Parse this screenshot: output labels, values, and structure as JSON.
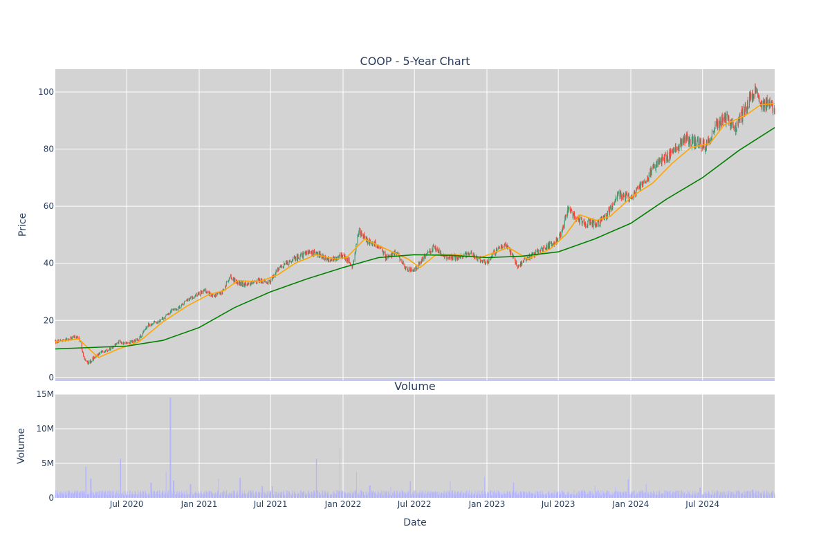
{
  "chart_data": [
    {
      "type": "candlestick",
      "title": "COOP - 5-Year Chart",
      "xlabel": "",
      "ylabel": "Price",
      "x_range": [
        "2020-01-02",
        "2024-12-31"
      ],
      "ylim": [
        -1,
        108
      ],
      "y_ticks": [
        0,
        20,
        40,
        60,
        80,
        100
      ],
      "x_ticks": [
        {
          "date": "2020-07-01",
          "label": "Jul 2020"
        },
        {
          "date": "2021-01-01",
          "label": "Jan 2021"
        },
        {
          "date": "2021-07-01",
          "label": "Jul 2021"
        },
        {
          "date": "2022-01-01",
          "label": "Jan 2022"
        },
        {
          "date": "2022-07-01",
          "label": "Jul 2022"
        },
        {
          "date": "2023-01-01",
          "label": "Jan 2023"
        },
        {
          "date": "2023-07-01",
          "label": "Jul 2023"
        },
        {
          "date": "2024-01-01",
          "label": "Jan 2024"
        },
        {
          "date": "2024-07-01",
          "label": "Jul 2024"
        }
      ],
      "grid": true,
      "up_color": "#3d9970",
      "down_color": "#ff4136",
      "close_path": [
        [
          "2020-01-02",
          12.5
        ],
        [
          "2020-02-01",
          13.2
        ],
        [
          "2020-02-20",
          14.3
        ],
        [
          "2020-03-05",
          13.0
        ],
        [
          "2020-03-15",
          6.5
        ],
        [
          "2020-03-25",
          5.0
        ],
        [
          "2020-04-05",
          6.5
        ],
        [
          "2020-04-20",
          8.5
        ],
        [
          "2020-05-15",
          9.5
        ],
        [
          "2020-06-10",
          12.5
        ],
        [
          "2020-07-01",
          12.0
        ],
        [
          "2020-08-01",
          13.5
        ],
        [
          "2020-08-25",
          18.5
        ],
        [
          "2020-09-20",
          19.5
        ],
        [
          "2020-10-20",
          23.0
        ],
        [
          "2020-11-10",
          24.5
        ],
        [
          "2020-12-01",
          27.0
        ],
        [
          "2021-01-15",
          30.5
        ],
        [
          "2021-02-05",
          28.5
        ],
        [
          "2021-03-01",
          30.0
        ],
        [
          "2021-03-20",
          35.5
        ],
        [
          "2021-04-10",
          33.0
        ],
        [
          "2021-05-01",
          32.5
        ],
        [
          "2021-06-01",
          34.0
        ],
        [
          "2021-07-01",
          33.5
        ],
        [
          "2021-07-20",
          38.0
        ],
        [
          "2021-08-15",
          40.5
        ],
        [
          "2021-09-15",
          42.5
        ],
        [
          "2021-10-05",
          44.0
        ],
        [
          "2021-11-01",
          43.0
        ],
        [
          "2021-12-01",
          41.0
        ],
        [
          "2022-01-01",
          43.0
        ],
        [
          "2022-01-25",
          39.0
        ],
        [
          "2022-02-10",
          51.5
        ],
        [
          "2022-03-01",
          48.0
        ],
        [
          "2022-04-01",
          46.0
        ],
        [
          "2022-04-20",
          42.0
        ],
        [
          "2022-05-15",
          44.0
        ],
        [
          "2022-06-10",
          38.0
        ],
        [
          "2022-07-01",
          37.5
        ],
        [
          "2022-07-25",
          42.0
        ],
        [
          "2022-08-20",
          46.0
        ],
        [
          "2022-09-15",
          42.0
        ],
        [
          "2022-10-15",
          42.0
        ],
        [
          "2022-11-20",
          43.5
        ],
        [
          "2023-01-01",
          40.0
        ],
        [
          "2023-01-20",
          44.0
        ],
        [
          "2023-02-20",
          46.5
        ],
        [
          "2023-03-20",
          39.0
        ],
        [
          "2023-04-15",
          42.0
        ],
        [
          "2023-05-20",
          45.0
        ],
        [
          "2023-06-20",
          47.0
        ],
        [
          "2023-07-10",
          51.0
        ],
        [
          "2023-07-25",
          59.0
        ],
        [
          "2023-08-15",
          56.0
        ],
        [
          "2023-09-10",
          54.0
        ],
        [
          "2023-10-10",
          54.0
        ],
        [
          "2023-11-01",
          57.0
        ],
        [
          "2023-12-01",
          64.0
        ],
        [
          "2024-01-01",
          63.0
        ],
        [
          "2024-02-01",
          68.0
        ],
        [
          "2024-02-20",
          72.0
        ],
        [
          "2024-03-20",
          76.0
        ],
        [
          "2024-04-20",
          79.0
        ],
        [
          "2024-05-15",
          84.0
        ],
        [
          "2024-06-15",
          82.0
        ],
        [
          "2024-07-10",
          81.0
        ],
        [
          "2024-08-01",
          88.0
        ],
        [
          "2024-09-01",
          91.0
        ],
        [
          "2024-09-20",
          87.0
        ],
        [
          "2024-10-20",
          95.0
        ],
        [
          "2024-11-10",
          100.0
        ],
        [
          "2024-12-01",
          96.0
        ],
        [
          "2024-12-31",
          95.0
        ]
      ],
      "ma_short": {
        "color": "#ffa500",
        "points": [
          [
            "2020-01-02",
            12.5
          ],
          [
            "2020-03-01",
            13.5
          ],
          [
            "2020-04-20",
            7.0
          ],
          [
            "2020-06-10",
            10.0
          ],
          [
            "2020-08-01",
            12.5
          ],
          [
            "2020-10-01",
            19.5
          ],
          [
            "2020-12-01",
            25.0
          ],
          [
            "2021-01-25",
            29.0
          ],
          [
            "2021-03-05",
            30.5
          ],
          [
            "2021-04-10",
            34.0
          ],
          [
            "2021-06-01",
            33.5
          ],
          [
            "2021-07-20",
            36.0
          ],
          [
            "2021-09-01",
            40.0
          ],
          [
            "2021-10-25",
            43.0
          ],
          [
            "2021-12-10",
            41.5
          ],
          [
            "2022-01-10",
            42.0
          ],
          [
            "2022-02-25",
            48.5
          ],
          [
            "2022-04-20",
            45.0
          ],
          [
            "2022-06-15",
            41.5
          ],
          [
            "2022-07-15",
            38.5
          ],
          [
            "2022-08-25",
            43.0
          ],
          [
            "2022-10-15",
            43.0
          ],
          [
            "2022-12-15",
            42.0
          ],
          [
            "2023-02-25",
            45.5
          ],
          [
            "2023-04-15",
            41.5
          ],
          [
            "2023-06-10",
            45.0
          ],
          [
            "2023-07-20",
            50.0
          ],
          [
            "2023-08-25",
            57.0
          ],
          [
            "2023-10-05",
            55.0
          ],
          [
            "2023-11-10",
            56.5
          ],
          [
            "2024-01-05",
            63.5
          ],
          [
            "2024-02-25",
            68.0
          ],
          [
            "2024-04-15",
            75.0
          ],
          [
            "2024-06-01",
            80.5
          ],
          [
            "2024-07-20",
            82.0
          ],
          [
            "2024-08-25",
            88.5
          ],
          [
            "2024-10-20",
            92.0
          ],
          [
            "2024-11-25",
            95.5
          ],
          [
            "2024-12-31",
            96.0
          ]
        ]
      },
      "ma_long": {
        "color": "#008000",
        "points": [
          [
            "2020-01-02",
            10.0
          ],
          [
            "2020-04-01",
            10.5
          ],
          [
            "2020-07-01",
            11.0
          ],
          [
            "2020-10-01",
            13.0
          ],
          [
            "2021-01-01",
            17.5
          ],
          [
            "2021-04-01",
            24.5
          ],
          [
            "2021-07-01",
            30.0
          ],
          [
            "2021-10-01",
            34.5
          ],
          [
            "2022-01-01",
            38.5
          ],
          [
            "2022-04-01",
            42.0
          ],
          [
            "2022-07-01",
            43.0
          ],
          [
            "2022-10-01",
            42.8
          ],
          [
            "2023-01-01",
            42.0
          ],
          [
            "2023-04-01",
            42.5
          ],
          [
            "2023-07-01",
            44.0
          ],
          [
            "2023-10-01",
            48.5
          ],
          [
            "2024-01-01",
            54.0
          ],
          [
            "2024-04-01",
            62.5
          ],
          [
            "2024-07-01",
            70.0
          ],
          [
            "2024-10-01",
            79.5
          ],
          [
            "2024-12-31",
            87.5
          ]
        ]
      }
    },
    {
      "type": "bar",
      "title": "Volume",
      "xlabel": "Date",
      "ylabel": "Volume",
      "ylim": [
        0,
        15000000
      ],
      "y_ticks": [
        {
          "value": 0,
          "label": "0"
        },
        {
          "value": 5000000,
          "label": "5M"
        },
        {
          "value": 10000000,
          "label": "10M"
        },
        {
          "value": 15000000,
          "label": "15M"
        }
      ],
      "x_ticks": [
        {
          "date": "2020-07-01",
          "label": "Jul 2020"
        },
        {
          "date": "2021-01-01",
          "label": "Jan 2021"
        },
        {
          "date": "2021-07-01",
          "label": "Jul 2021"
        },
        {
          "date": "2022-01-01",
          "label": "Jan 2022"
        },
        {
          "date": "2022-07-01",
          "label": "Jul 2022"
        },
        {
          "date": "2023-01-01",
          "label": "Jan 2023"
        },
        {
          "date": "2023-07-01",
          "label": "Jul 2023"
        },
        {
          "date": "2024-01-01",
          "label": "Jan 2024"
        },
        {
          "date": "2024-07-01",
          "label": "Jul 2024"
        }
      ],
      "grid": true,
      "bar_color": "#b3b3ff",
      "baseline_level": 700000,
      "spikes": [
        [
          "2020-03-20",
          4500000
        ],
        [
          "2020-04-01",
          2800000
        ],
        [
          "2020-06-15",
          5700000
        ],
        [
          "2020-09-01",
          2200000
        ],
        [
          "2020-10-10",
          3800000
        ],
        [
          "2020-10-20",
          14500000
        ],
        [
          "2020-10-28",
          2500000
        ],
        [
          "2020-12-10",
          2000000
        ],
        [
          "2021-02-20",
          2800000
        ],
        [
          "2021-04-15",
          2900000
        ],
        [
          "2021-06-10",
          1700000
        ],
        [
          "2021-07-05",
          1700000
        ],
        [
          "2021-10-25",
          5700000
        ],
        [
          "2021-12-25",
          7200000
        ],
        [
          "2022-02-05",
          3700000
        ],
        [
          "2022-03-10",
          1800000
        ],
        [
          "2022-05-01",
          1600000
        ],
        [
          "2022-06-20",
          2400000
        ],
        [
          "2022-10-01",
          2400000
        ],
        [
          "2022-12-25",
          3100000
        ],
        [
          "2023-03-10",
          2200000
        ],
        [
          "2023-10-01",
          1700000
        ],
        [
          "2023-11-25",
          1600000
        ],
        [
          "2023-12-25",
          2700000
        ],
        [
          "2024-02-10",
          2000000
        ],
        [
          "2024-06-25",
          1500000
        ],
        [
          "2024-11-05",
          1200000
        ]
      ]
    }
  ]
}
